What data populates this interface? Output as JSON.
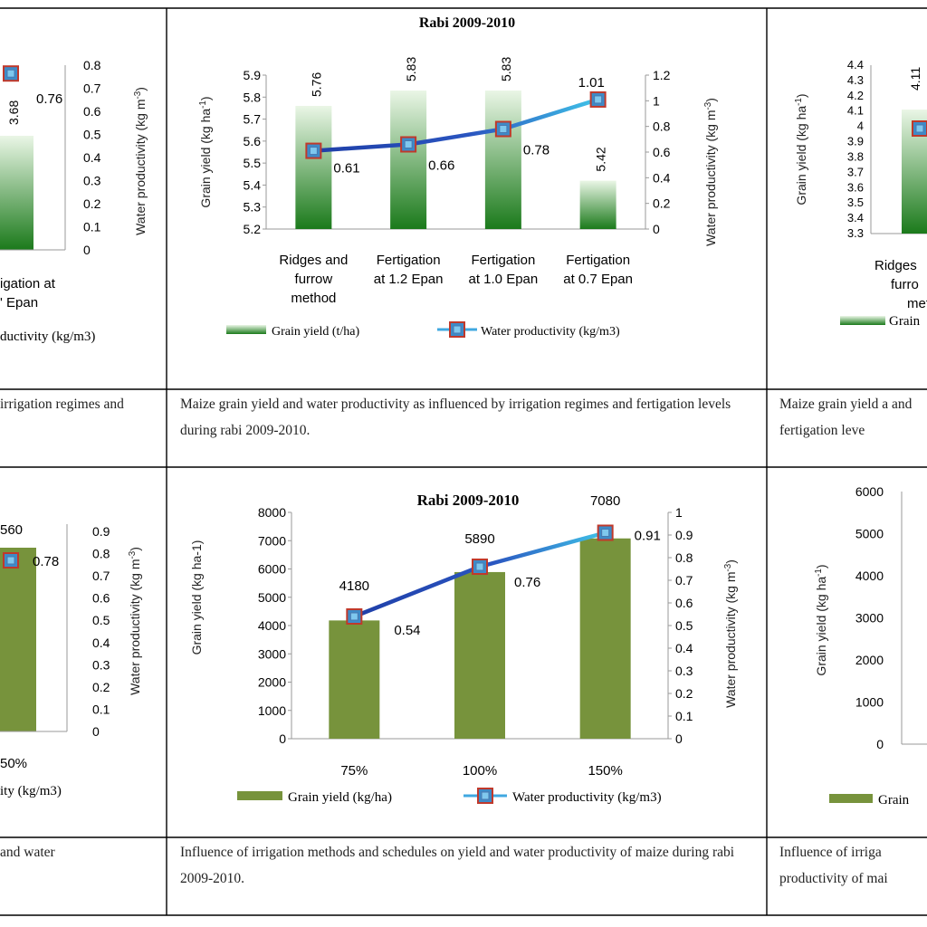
{
  "captions": {
    "top_left": "irrigation regimes and",
    "top_center": "Maize grain yield and water productivity as influenced by irrigation regimes and fertigation levels during rabi 2009-2010.",
    "top_right": "Maize grain yield a and fertigation leve",
    "bottom_left": "and water",
    "bottom_center": "Influence of irrigation methods and schedules on yield and water productivity of maize during rabi 2009-2010.",
    "bottom_right": "Influence of irriga productivity of mai"
  },
  "colors": {
    "bar_dark": "#1b7a1b",
    "bar_light": "#eaf6e6",
    "bar_olive": "#77933c",
    "line_dark": "#1f3fa8",
    "line_light": "#40c4e8",
    "marker_fill": "#3d8bc8",
    "marker_edge": "#c0392b"
  },
  "chart_data": [
    {
      "id": "top_center",
      "type": "bar",
      "title": "Rabi 2009-2010",
      "categories": [
        [
          "Ridges and",
          "furrow",
          "method"
        ],
        [
          "Fertigation",
          "at 1.2 Epan"
        ],
        [
          "Fertigation",
          "at 1.0 Epan"
        ],
        [
          "Fertigation",
          "at 0.7 Epan"
        ]
      ],
      "series": [
        {
          "name": "Grain yield (t/ha)",
          "type": "bar",
          "axis": "left",
          "values": [
            5.76,
            5.83,
            5.83,
            5.42
          ],
          "labels": [
            "5.76",
            "5.83",
            "5.83",
            "5.42"
          ]
        },
        {
          "name": "Water productivity (kg/m3)",
          "type": "line",
          "axis": "right",
          "values": [
            0.61,
            0.66,
            0.78,
            1.01
          ],
          "labels": [
            "0.61",
            "0.66",
            "0.78",
            "1.01"
          ]
        }
      ],
      "ylabel_left": "Grain yield (kg ha",
      "ylabel_left_sup": "-1",
      "ylabel_right": "Water productivity (kg m",
      "ylabel_right_sup": "-3",
      "y_left": {
        "min": 5.2,
        "max": 5.9,
        "step": 0.1,
        "ticks": [
          "5.2",
          "5.3",
          "5.4",
          "5.5",
          "5.6",
          "5.7",
          "5.8",
          "5.9"
        ]
      },
      "y_right": {
        "min": 0,
        "max": 1.2,
        "step": 0.2,
        "ticks": [
          "0",
          "0.2",
          "0.4",
          "0.6",
          "0.8",
          "1",
          "1.2"
        ]
      }
    },
    {
      "id": "bottom_center",
      "type": "bar",
      "title": "Rabi 2009-2010",
      "categories": [
        [
          "75%"
        ],
        [
          "100%"
        ],
        [
          "150%"
        ]
      ],
      "series": [
        {
          "name": "Grain yield (kg/ha)",
          "type": "bar",
          "axis": "left",
          "values": [
            4180,
            5890,
            7080
          ],
          "labels": [
            "4180",
            "5890",
            "7080"
          ]
        },
        {
          "name": "Water productivity (kg/m3)",
          "type": "line",
          "axis": "right",
          "values": [
            0.54,
            0.76,
            0.91
          ],
          "labels": [
            "0.54",
            "0.76",
            "0.91"
          ]
        }
      ],
      "ylabel_left": "Grain yield (kg ha-1)",
      "ylabel_right": "Water productivity (kg m",
      "ylabel_right_sup": "-3",
      "y_left": {
        "min": 0,
        "max": 8000,
        "step": 1000,
        "ticks": [
          "0",
          "1000",
          "2000",
          "3000",
          "4000",
          "5000",
          "6000",
          "7000",
          "8000"
        ]
      },
      "y_right": {
        "min": 0,
        "max": 1,
        "step": 0.1,
        "ticks": [
          "0",
          "0.1",
          "0.2",
          "0.3",
          "0.4",
          "0.5",
          "0.6",
          "0.7",
          "0.8",
          "0.9",
          "1"
        ]
      }
    },
    {
      "id": "top_left_partial",
      "type": "bar",
      "partial": true,
      "categories": [
        [
          "igation at",
          "' Epan"
        ]
      ],
      "series": [
        {
          "name": "",
          "type": "bar",
          "axis": "left",
          "labels": [
            "3.68"
          ]
        },
        {
          "name": "",
          "type": "line",
          "axis": "right",
          "values": [
            0.76
          ],
          "labels": [
            "0.76"
          ]
        }
      ],
      "legend_fragment": "ductivity (kg/m3)",
      "ylabel_right": "Water productivity (kg m",
      "ylabel_right_sup": "-3",
      "y_right": {
        "min": 0,
        "max": 0.8,
        "step": 0.1,
        "ticks": [
          "0",
          "0.1",
          "0.2",
          "0.3",
          "0.4",
          "0.5",
          "0.6",
          "0.7",
          "0.8"
        ]
      }
    },
    {
      "id": "bottom_left_partial",
      "type": "bar",
      "partial": true,
      "categories": [
        [
          "50%"
        ]
      ],
      "series": [
        {
          "name": "",
          "type": "bar",
          "axis": "left",
          "labels": [
            "560"
          ]
        },
        {
          "name": "",
          "type": "line",
          "axis": "right",
          "values": [
            0.78
          ],
          "labels": [
            "0.78"
          ]
        }
      ],
      "legend_fragment": "ity (kg/m3)",
      "ylabel_right": "Water productivity (kg m",
      "ylabel_right_sup": "-3",
      "y_right": {
        "min": 0,
        "max": 0.9,
        "step": 0.1,
        "ticks": [
          "0",
          "0.1",
          "0.2",
          "0.3",
          "0.4",
          "0.5",
          "0.6",
          "0.7",
          "0.8",
          "0.9"
        ]
      }
    },
    {
      "id": "top_right_partial",
      "type": "bar",
      "partial": true,
      "categories": [
        [
          "Ridges",
          "furro",
          "meth"
        ]
      ],
      "series": [
        {
          "name": "",
          "type": "bar",
          "axis": "left",
          "values": [
            4.11
          ],
          "labels": [
            "4.11"
          ]
        },
        {
          "name": "",
          "type": "line",
          "axis": "right"
        }
      ],
      "legend_fragment": "Grain",
      "ylabel_left": "Grain yield (kg ha",
      "ylabel_left_sup": "-1",
      "y_left": {
        "min": 3.3,
        "max": 4.4,
        "step": 0.1,
        "ticks": [
          "3.3",
          "3.4",
          "3.5",
          "3.6",
          "3.7",
          "3.8",
          "3.9",
          "4",
          "4.1",
          "4.2",
          "4.3",
          "4.4"
        ]
      }
    },
    {
      "id": "bottom_right_partial",
      "type": "bar",
      "partial": true,
      "legend_fragment": "Grain",
      "ylabel_left": "Grain yield (kg ha",
      "ylabel_left_sup": "-1",
      "y_left": {
        "min": 0,
        "max": 6000,
        "step": 1000,
        "ticks": [
          "0",
          "1000",
          "2000",
          "3000",
          "4000",
          "5000",
          "6000"
        ]
      }
    }
  ]
}
